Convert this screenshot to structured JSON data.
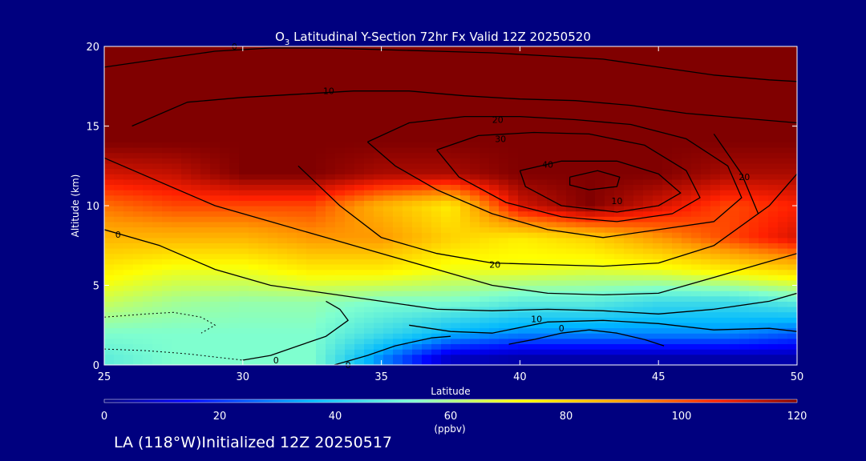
{
  "title": {
    "main": "O",
    "sub": "3",
    "rest": " Latitudinal Y-Section 72hr  Fx Valid 12Z 20250520"
  },
  "footer": "LA (118°W)Initialized 12Z 20250517",
  "chart_data": {
    "type": "heatmap",
    "xlabel": "Latitude",
    "ylabel": "Altitude (km)",
    "xlim": [
      25,
      50
    ],
    "ylim": [
      0,
      20
    ],
    "xticks": [
      25,
      30,
      35,
      40,
      45,
      50
    ],
    "yticks": [
      0,
      5,
      10,
      15,
      20
    ],
    "colorbar": {
      "label": "(ppbv)",
      "min": 0,
      "max": 120,
      "ticks": [
        0,
        20,
        40,
        60,
        80,
        100,
        120
      ]
    },
    "colors": {
      "background": "#00007f",
      "frame": "#ffffff",
      "contour": "#000000"
    },
    "field_description": "Ozone mixing ratio; high values (>110 ppbv) above ~12 km and a tropopause fold near 40-45N dipping to ~9 km; low values (<20 ppbv) near surface from 35N to 50N",
    "ozone_levels": [
      {
        "altitude_km": 0.5,
        "values": [
          50,
          55,
          55,
          55,
          30,
          8,
          5,
          5,
          5,
          5,
          5
        ]
      },
      {
        "altitude_km": 2,
        "values": [
          55,
          55,
          55,
          55,
          45,
          35,
          30,
          30,
          30,
          30,
          25
        ]
      },
      {
        "altitude_km": 4,
        "values": [
          65,
          60,
          58,
          58,
          55,
          55,
          50,
          50,
          45,
          45,
          50
        ]
      },
      {
        "altitude_km": 6,
        "values": [
          75,
          70,
          70,
          75,
          75,
          70,
          70,
          68,
          70,
          75,
          80
        ]
      },
      {
        "altitude_km": 8,
        "values": [
          85,
          85,
          85,
          90,
          90,
          80,
          75,
          80,
          90,
          100,
          110
        ]
      },
      {
        "altitude_km": 10,
        "values": [
          95,
          100,
          100,
          100,
          85,
          75,
          110,
          120,
          110,
          100,
          105
        ]
      },
      {
        "altitude_km": 12,
        "values": [
          110,
          112,
          120,
          120,
          115,
          115,
          120,
          120,
          120,
          115,
          115
        ]
      },
      {
        "altitude_km": 14,
        "values": [
          120,
          120,
          120,
          120,
          120,
          120,
          120,
          120,
          120,
          120,
          120
        ]
      },
      {
        "altitude_km": 20,
        "values": [
          120,
          120,
          120,
          120,
          120,
          120,
          120,
          120,
          120,
          120,
          120
        ]
      }
    ],
    "ozone_latitudes": [
      25,
      27.5,
      30,
      32.5,
      35,
      37.5,
      40,
      42.5,
      45,
      47.5,
      50
    ],
    "contours": [
      {
        "label": "10",
        "label_at": [
          43.5,
          10.3
        ],
        "points": [
          [
            25,
            13
          ],
          [
            27,
            11.5
          ],
          [
            29,
            10
          ],
          [
            31,
            9
          ],
          [
            33,
            8
          ],
          [
            35,
            7
          ],
          [
            37,
            6
          ],
          [
            39,
            5
          ],
          [
            41,
            4.5
          ],
          [
            43,
            4.4
          ],
          [
            45,
            4.5
          ],
          [
            47,
            5.5
          ],
          [
            49,
            6.5
          ],
          [
            50,
            7
          ]
        ]
      },
      {
        "label": "0",
        "label_at": [
          25.5,
          8.2
        ],
        "points": [
          [
            25,
            8.5
          ],
          [
            27,
            7.5
          ],
          [
            29,
            6
          ],
          [
            31,
            5
          ],
          [
            33,
            4.5
          ],
          [
            35,
            4
          ],
          [
            37,
            3.5
          ],
          [
            39,
            3.4
          ],
          [
            41,
            3.5
          ],
          [
            43,
            3.4
          ],
          [
            45,
            3.2
          ],
          [
            47,
            3.5
          ],
          [
            49,
            4
          ],
          [
            50,
            4.5
          ]
        ]
      },
      {
        "label": "20",
        "label_at": [
          39.1,
          6.3
        ],
        "points": [
          [
            32,
            12.5
          ],
          [
            33.5,
            10
          ],
          [
            35,
            8
          ],
          [
            37,
            7
          ],
          [
            39,
            6.4
          ],
          [
            41,
            6.3
          ],
          [
            43,
            6.2
          ],
          [
            45,
            6.4
          ],
          [
            47,
            7.5
          ],
          [
            49,
            10
          ],
          [
            50,
            12
          ]
        ]
      },
      {
        "label": "10",
        "label_at": [
          40.6,
          2.9
        ],
        "points": [
          [
            36,
            2.5
          ],
          [
            37.5,
            2.1
          ],
          [
            39,
            2
          ],
          [
            41,
            2.7
          ],
          [
            43,
            2.8
          ],
          [
            45,
            2.6
          ],
          [
            47,
            2.2
          ],
          [
            49,
            2.3
          ],
          [
            50,
            2.1
          ]
        ]
      },
      {
        "label": "0",
        "label_at": [
          41.5,
          2.3
        ],
        "points": [
          [
            39.6,
            1.3
          ],
          [
            40.5,
            1.6
          ],
          [
            41.5,
            2
          ],
          [
            42.5,
            2.2
          ],
          [
            43.5,
            2
          ],
          [
            44.5,
            1.6
          ],
          [
            45.2,
            1.2
          ]
        ]
      },
      {
        "label": "0",
        "label_at": [
          31.2,
          0.3
        ],
        "points": [
          [
            30,
            0.3
          ],
          [
            31,
            0.6
          ],
          [
            32,
            1.2
          ],
          [
            33,
            1.8
          ],
          [
            33.8,
            2.8
          ],
          [
            33.5,
            3.5
          ],
          [
            33,
            4
          ]
        ]
      },
      {
        "label": "0",
        "label_at": [
          33.8,
          0
        ],
        "points": [
          [
            33.3,
            0
          ],
          [
            34.5,
            0.6
          ],
          [
            35.5,
            1.2
          ],
          [
            36.8,
            1.7
          ],
          [
            37.5,
            1.8
          ]
        ]
      },
      {
        "label": "20",
        "label_at": [
          39.2,
          15.4
        ],
        "points": [
          [
            34.5,
            14
          ],
          [
            36,
            15.2
          ],
          [
            38,
            15.6
          ],
          [
            40,
            15.6
          ],
          [
            42,
            15.4
          ],
          [
            44,
            15.1
          ],
          [
            46,
            14.2
          ],
          [
            47.5,
            12.5
          ],
          [
            48,
            10.5
          ],
          [
            47,
            9
          ],
          [
            45,
            8.5
          ],
          [
            43,
            8
          ],
          [
            41,
            8.5
          ],
          [
            39,
            9.5
          ],
          [
            37,
            11
          ],
          [
            35.5,
            12.5
          ],
          [
            34.5,
            14
          ]
        ]
      },
      {
        "label": "30",
        "label_at": [
          39.3,
          14.2
        ],
        "points": [
          [
            37,
            13.5
          ],
          [
            38.5,
            14.4
          ],
          [
            40.5,
            14.6
          ],
          [
            42.5,
            14.5
          ],
          [
            44.5,
            13.8
          ],
          [
            46,
            12.2
          ],
          [
            46.5,
            10.5
          ],
          [
            45.5,
            9.5
          ],
          [
            43.5,
            9
          ],
          [
            41.5,
            9.3
          ],
          [
            39.5,
            10.2
          ],
          [
            37.8,
            11.8
          ],
          [
            37,
            13.5
          ]
        ]
      },
      {
        "label": "40",
        "label_at": [
          41,
          12.6
        ],
        "points": [
          [
            40,
            12.2
          ],
          [
            41.5,
            12.8
          ],
          [
            43.5,
            12.8
          ],
          [
            45,
            12
          ],
          [
            45.8,
            10.8
          ],
          [
            45,
            10
          ],
          [
            43.5,
            9.6
          ],
          [
            41.5,
            10
          ],
          [
            40.2,
            11.2
          ],
          [
            40,
            12.2
          ]
        ]
      },
      {
        "label": "",
        "label_at": [
          42,
          11.5
        ],
        "points": [
          [
            41.8,
            11.8
          ],
          [
            42.8,
            12.2
          ],
          [
            43.6,
            11.8
          ],
          [
            43.5,
            11.2
          ],
          [
            42.5,
            11
          ],
          [
            41.8,
            11.3
          ],
          [
            41.8,
            11.8
          ]
        ]
      },
      {
        "label": "10",
        "label_at": [
          33.1,
          17.2
        ],
        "points": [
          [
            26,
            15
          ],
          [
            28,
            16.5
          ],
          [
            30,
            16.8
          ],
          [
            32,
            17
          ],
          [
            34,
            17.2
          ],
          [
            36,
            17.2
          ],
          [
            38,
            16.9
          ],
          [
            40,
            16.7
          ],
          [
            42,
            16.6
          ],
          [
            44,
            16.3
          ],
          [
            46,
            15.8
          ],
          [
            48,
            15.5
          ],
          [
            50,
            15.2
          ]
        ]
      },
      {
        "label": "0",
        "label_at": [
          29.7,
          20
        ],
        "points": [
          [
            25,
            18.7
          ],
          [
            27,
            19.2
          ],
          [
            29,
            19.7
          ],
          [
            31,
            19.9
          ],
          [
            33,
            19.9
          ],
          [
            35,
            19.8
          ],
          [
            37,
            19.7
          ],
          [
            39,
            19.6
          ],
          [
            41,
            19.4
          ],
          [
            43,
            19.2
          ],
          [
            45,
            18.7
          ],
          [
            47,
            18.2
          ],
          [
            49,
            17.9
          ],
          [
            50,
            17.8
          ]
        ]
      },
      {
        "label": "20",
        "label_at": [
          48.1,
          11.8
        ],
        "points": [
          [
            47,
            14.5
          ],
          [
            48,
            12
          ],
          [
            48.6,
            9.5
          ]
        ]
      }
    ],
    "dotted_contours": [
      {
        "points": [
          [
            25,
            3
          ],
          [
            26.5,
            3.2
          ],
          [
            27.5,
            3.3
          ],
          [
            28.5,
            3
          ],
          [
            29,
            2.5
          ],
          [
            28.5,
            2
          ]
        ]
      },
      {
        "points": [
          [
            25,
            1
          ],
          [
            26.5,
            0.9
          ],
          [
            28,
            0.7
          ],
          [
            29,
            0.5
          ],
          [
            30,
            0.3
          ]
        ]
      }
    ]
  }
}
